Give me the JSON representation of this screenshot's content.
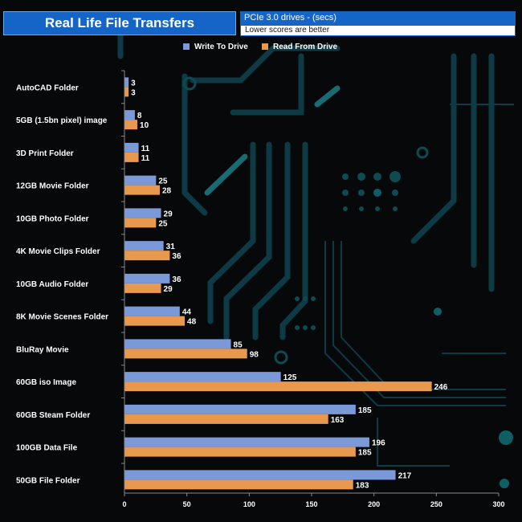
{
  "chart_data": {
    "type": "bar",
    "orientation": "horizontal",
    "title": "Real Life File Transfers",
    "subtitle": "PCIe 3.0 drives - (secs)",
    "note": "Lower scores are better",
    "categories": [
      "AutoCAD Folder",
      "5GB (1.5bn pixel) image",
      "3D Print Folder",
      "12GB Movie Folder",
      "10GB Photo Folder",
      "4K Movie Clips Folder",
      "10GB Audio Folder",
      "8K Movie Scenes Folder",
      "BluRay Movie",
      "60GB iso Image",
      "60GB Steam Folder",
      "100GB Data File",
      "50GB File Folder"
    ],
    "series": [
      {
        "name": "Write To  Drive",
        "color": "#7b99d8",
        "values": [
          3,
          8,
          11,
          25,
          29,
          31,
          36,
          44,
          85,
          125,
          185,
          196,
          217
        ]
      },
      {
        "name": "Read From  Drive",
        "color": "#e8994e",
        "values": [
          3,
          10,
          11,
          28,
          25,
          36,
          29,
          48,
          98,
          246,
          163,
          185,
          183
        ]
      }
    ],
    "xlim": [
      0,
      300
    ],
    "xticks": [
      0,
      50,
      100,
      150,
      200,
      250,
      300
    ],
    "xlabel": "",
    "ylabel": "",
    "legend": "top-center"
  }
}
